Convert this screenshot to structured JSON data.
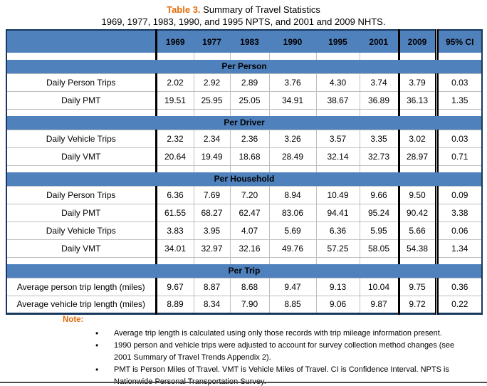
{
  "title": {
    "table_label": "Table 3.",
    "heading": "Summary of Travel Statistics",
    "subtitle": "1969, 1977, 1983, 1990, and 1995 NPTS, and 2001 and 2009 NHTS."
  },
  "table": {
    "columns": [
      "",
      "1969",
      "1977",
      "1983",
      "1990",
      "1995",
      "2001",
      "2009",
      "95% CI"
    ],
    "sections": [
      {
        "header": "Per Person",
        "rows": [
          {
            "label": "Daily Person Trips",
            "values": [
              "2.02",
              "2.92",
              "2.89",
              "3.76",
              "4.30",
              "3.74",
              "3.79",
              "0.03"
            ]
          },
          {
            "label": "Daily PMT",
            "values": [
              "19.51",
              "25.95",
              "25.05",
              "34.91",
              "38.67",
              "36.89",
              "36.13",
              "1.35"
            ]
          }
        ]
      },
      {
        "header": "Per Driver",
        "rows": [
          {
            "label": "Daily Vehicle Trips",
            "values": [
              "2.32",
              "2.34",
              "2.36",
              "3.26",
              "3.57",
              "3.35",
              "3.02",
              "0.03"
            ]
          },
          {
            "label": "Daily VMT",
            "values": [
              "20.64",
              "19.49",
              "18.68",
              "28.49",
              "32.14",
              "32.73",
              "28.97",
              "0.71"
            ]
          }
        ]
      },
      {
        "header": "Per Household",
        "rows": [
          {
            "label": "Daily Person Trips",
            "values": [
              "6.36",
              "7.69",
              "7.20",
              "8.94",
              "10.49",
              "9.66",
              "9.50",
              "0.09"
            ]
          },
          {
            "label": "Daily PMT",
            "values": [
              "61.55",
              "68.27",
              "62.47",
              "83.06",
              "94.41",
              "95.24",
              "90.42",
              "3.38"
            ]
          },
          {
            "label": "Daily Vehicle Trips",
            "values": [
              "3.83",
              "3.95",
              "4.07",
              "5.69",
              "6.36",
              "5.95",
              "5.66",
              "0.06"
            ]
          },
          {
            "label": "Daily VMT",
            "values": [
              "34.01",
              "32.97",
              "32.16",
              "49.76",
              "57.25",
              "58.05",
              "54.38",
              "1.34"
            ]
          }
        ]
      },
      {
        "header": "Per Trip",
        "rows": [
          {
            "label": "Average person trip length (miles)",
            "values": [
              "9.67",
              "8.87",
              "8.68",
              "9.47",
              "9.13",
              "10.04",
              "9.75",
              "0.36"
            ]
          },
          {
            "label": "Average vehicle trip length (miles)",
            "values": [
              "8.89",
              "8.34",
              "7.90",
              "8.85",
              "9.06",
              "9.87",
              "9.72",
              "0.22"
            ]
          }
        ]
      }
    ]
  },
  "notes": {
    "label": "Note:",
    "items": [
      "Average trip length is calculated using only those records with trip mileage information present.",
      "1990 person and vehicle trips were adjusted to account for survey collection method changes (see 2001 Summary of Travel Trends Appendix 2).",
      "PMT is Person Miles of Travel. VMT is Vehicle Miles of Travel. CI is Confidence Interval. NPTS is Nationwide Personal Transportation Survey."
    ]
  },
  "colors": {
    "header_blue": "#4F81BD",
    "accent_orange": "#E36C0A",
    "border_navy": "#17375E",
    "grid_gray": "#BFBFBF",
    "thick_black": "#000000",
    "page_rule_gray": "#4d4d4d"
  }
}
